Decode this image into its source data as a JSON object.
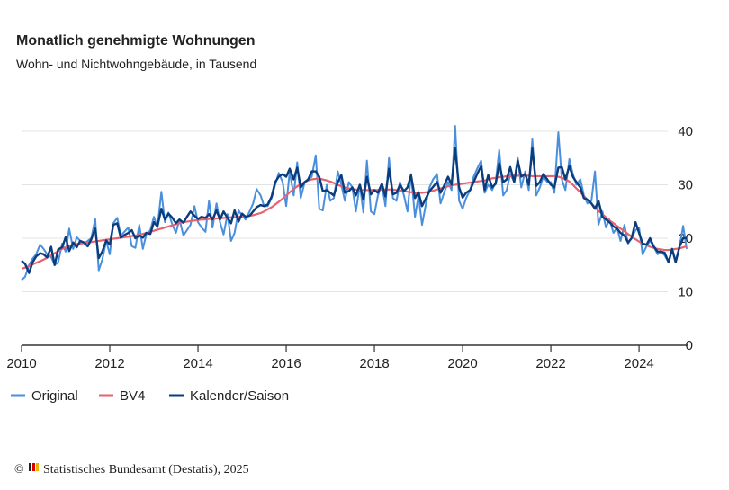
{
  "chart_data": {
    "type": "line",
    "title": "Monatlich genehmigte Wohnungen",
    "subtitle": "Wohn- und Nichtwohngebäude, in Tausend",
    "source": "Statistisches Bundesamt (Destatis), 2025",
    "x": [
      2010,
      2010.08,
      2010.17,
      2010.25,
      2010.33,
      2010.42,
      2010.5,
      2010.58,
      2010.67,
      2010.75,
      2010.83,
      2010.92,
      2011,
      2011.08,
      2011.17,
      2011.25,
      2011.33,
      2011.42,
      2011.5,
      2011.58,
      2011.67,
      2011.75,
      2011.83,
      2011.92,
      2012,
      2012.08,
      2012.17,
      2012.25,
      2012.33,
      2012.42,
      2012.5,
      2012.58,
      2012.67,
      2012.75,
      2012.83,
      2012.92,
      2013,
      2013.08,
      2013.17,
      2013.25,
      2013.33,
      2013.42,
      2013.5,
      2013.58,
      2013.67,
      2013.75,
      2013.83,
      2013.92,
      2014,
      2014.08,
      2014.17,
      2014.25,
      2014.33,
      2014.42,
      2014.5,
      2014.58,
      2014.67,
      2014.75,
      2014.83,
      2014.92,
      2015,
      2015.08,
      2015.17,
      2015.25,
      2015.33,
      2015.42,
      2015.5,
      2015.58,
      2015.67,
      2015.75,
      2015.83,
      2015.92,
      2016,
      2016.08,
      2016.17,
      2016.25,
      2016.33,
      2016.42,
      2016.5,
      2016.58,
      2016.67,
      2016.75,
      2016.83,
      2016.92,
      2017,
      2017.08,
      2017.17,
      2017.25,
      2017.33,
      2017.42,
      2017.5,
      2017.58,
      2017.67,
      2017.75,
      2017.83,
      2017.92,
      2018,
      2018.08,
      2018.17,
      2018.25,
      2018.33,
      2018.42,
      2018.5,
      2018.58,
      2018.67,
      2018.75,
      2018.83,
      2018.92,
      2019,
      2019.08,
      2019.17,
      2019.25,
      2019.33,
      2019.42,
      2019.5,
      2019.58,
      2019.67,
      2019.75,
      2019.83,
      2019.92,
      2020,
      2020.08,
      2020.17,
      2020.25,
      2020.33,
      2020.42,
      2020.5,
      2020.58,
      2020.67,
      2020.75,
      2020.83,
      2020.92,
      2021,
      2021.08,
      2021.17,
      2021.25,
      2021.33,
      2021.42,
      2021.5,
      2021.58,
      2021.67,
      2021.75,
      2021.83,
      2021.92,
      2022,
      2022.08,
      2022.17,
      2022.25,
      2022.33,
      2022.42,
      2022.5,
      2022.58,
      2022.67,
      2022.75,
      2022.83,
      2022.92,
      2023,
      2023.08,
      2023.17,
      2023.25,
      2023.33,
      2023.42,
      2023.5,
      2023.58,
      2023.67,
      2023.75,
      2023.83,
      2023.92,
      2024,
      2024.08,
      2024.17,
      2024.25,
      2024.33,
      2024.42,
      2024.5,
      2024.58,
      2024.67,
      2024.75,
      2024.83,
      2024.92,
      2025,
      2025.08
    ],
    "series": [
      {
        "name": "Original",
        "color": "#4a8fdc",
        "width": 2,
        "values": [
          12.2,
          12.8,
          15.0,
          16.2,
          17.0,
          18.8,
          18.0,
          17.0,
          16.5,
          15.0,
          15.5,
          19.0,
          17.5,
          21.8,
          18.0,
          20.2,
          19.5,
          19.0,
          19.5,
          20.0,
          23.6,
          14.0,
          16.0,
          19.5,
          17.0,
          22.8,
          23.8,
          20.5,
          21.2,
          22.0,
          18.5,
          18.2,
          22.5,
          18.0,
          20.8,
          21.5,
          24.0,
          22.0,
          28.7,
          23.0,
          24.8,
          22.5,
          21.0,
          23.5,
          20.5,
          21.5,
          22.5,
          26.0,
          23.0,
          22.0,
          21.2,
          27.0,
          22.0,
          26.5,
          23.0,
          20.7,
          24.5,
          19.5,
          21.0,
          25.2,
          24.2,
          23.5,
          25.0,
          26.5,
          29.2,
          28.0,
          26.0,
          26.0,
          27.5,
          30.0,
          32.2,
          30.5,
          26.0,
          32.5,
          28.0,
          34.2,
          27.5,
          30.5,
          31.0,
          31.5,
          35.5,
          25.5,
          25.2,
          30.0,
          27.0,
          27.5,
          32.5,
          30.0,
          27.0,
          30.5,
          29.5,
          25.0,
          30.0,
          24.8,
          34.5,
          25.0,
          24.5,
          28.0,
          30.0,
          26.0,
          35.0,
          27.5,
          27.0,
          30.5,
          28.0,
          25.0,
          32.0,
          24.0,
          28.0,
          22.5,
          26.5,
          29.5,
          31.0,
          32.0,
          26.5,
          28.5,
          30.5,
          29.0,
          41.0,
          27.0,
          25.5,
          27.5,
          29.0,
          31.5,
          33.0,
          34.5,
          28.5,
          30.0,
          29.0,
          30.5,
          36.5,
          28.0,
          29.0,
          32.0,
          30.5,
          35.0,
          29.5,
          32.5,
          29.0,
          38.5,
          28.0,
          29.5,
          31.5,
          30.5,
          30.5,
          28.5,
          39.8,
          31.0,
          29.0,
          34.8,
          32.0,
          30.0,
          31.0,
          28.0,
          26.5,
          27.0,
          32.5,
          22.5,
          25.0,
          22.0,
          23.5,
          21.0,
          22.0,
          19.5,
          22.5,
          19.0,
          20.0,
          21.5,
          22.0,
          17.0,
          18.5,
          19.5,
          18.5,
          17.0,
          17.5,
          16.8,
          15.5,
          18.0,
          15.8,
          18.5,
          22.3,
          18.0
        ]
      },
      {
        "name": "BV4",
        "color": "#e8616f",
        "width": 2.2,
        "values": [
          14.3,
          14.5,
          14.8,
          15.1,
          15.4,
          15.7,
          16.0,
          16.4,
          16.8,
          17.2,
          17.6,
          18.0,
          18.3,
          18.5,
          18.7,
          18.9,
          19.0,
          19.1,
          19.2,
          19.3,
          19.4,
          19.5,
          19.6,
          19.7,
          19.8,
          19.9,
          20.0,
          20.1,
          20.2,
          20.3,
          20.4,
          20.5,
          20.6,
          20.8,
          21.0,
          21.2,
          21.4,
          21.6,
          21.8,
          22.0,
          22.2,
          22.4,
          22.6,
          22.8,
          23.0,
          23.1,
          23.2,
          23.3,
          23.4,
          23.5,
          23.5,
          23.6,
          23.6,
          23.7,
          23.7,
          23.8,
          23.8,
          23.9,
          23.9,
          24.0,
          24.0,
          24.1,
          24.2,
          24.3,
          24.5,
          24.7,
          25.0,
          25.4,
          25.8,
          26.3,
          26.8,
          27.4,
          28.0,
          28.6,
          29.2,
          29.7,
          30.1,
          30.5,
          30.8,
          31.0,
          31.1,
          31.1,
          31.0,
          30.8,
          30.6,
          30.3,
          30.0,
          29.7,
          29.5,
          29.3,
          29.2,
          29.1,
          29.0,
          29.0,
          29.0,
          29.0,
          29.0,
          29.0,
          29.1,
          29.1,
          29.1,
          29.1,
          29.0,
          28.9,
          28.8,
          28.7,
          28.6,
          28.5,
          28.5,
          28.5,
          28.6,
          28.7,
          28.9,
          29.1,
          29.3,
          29.5,
          29.7,
          29.9,
          30.0,
          30.1,
          30.2,
          30.3,
          30.4,
          30.5,
          30.6,
          30.7,
          30.8,
          31.0,
          31.2,
          31.3,
          31.4,
          31.5,
          31.6,
          31.6,
          31.7,
          31.7,
          31.7,
          31.7,
          31.7,
          31.6,
          31.6,
          31.6,
          31.6,
          31.6,
          31.6,
          31.6,
          31.5,
          31.3,
          31.0,
          30.6,
          30.0,
          29.3,
          28.6,
          27.9,
          27.2,
          26.5,
          25.8,
          25.1,
          24.5,
          23.9,
          23.3,
          22.8,
          22.3,
          21.8,
          21.3,
          20.8,
          20.3,
          19.8,
          19.4,
          19.0,
          18.7,
          18.4,
          18.2,
          18.0,
          17.9,
          17.8,
          17.8,
          17.9,
          18.0,
          18.1,
          18.3,
          18.5
        ]
      },
      {
        "name": "Kalender/Saison",
        "color": "#0b3d7c",
        "width": 2.4,
        "values": [
          15.8,
          15.2,
          13.5,
          15.5,
          16.6,
          17.2,
          17.0,
          16.4,
          18.4,
          15.0,
          17.9,
          18.3,
          20.2,
          17.6,
          19.2,
          18.3,
          19.5,
          19.2,
          18.5,
          19.8,
          21.8,
          16.3,
          17.5,
          19.6,
          18.8,
          22.5,
          22.8,
          20.1,
          20.6,
          21.0,
          21.5,
          20.0,
          20.5,
          20.1,
          21.0,
          20.8,
          23.0,
          22.2,
          25.5,
          23.5,
          24.6,
          23.8,
          22.8,
          23.5,
          22.9,
          24.0,
          25.0,
          24.2,
          23.6,
          24.0,
          23.8,
          24.5,
          23.5,
          25.2,
          23.5,
          25.0,
          23.8,
          22.8,
          25.2,
          23.1,
          24.6,
          24.0,
          24.2,
          25.0,
          25.8,
          26.2,
          26.0,
          26.3,
          27.8,
          30.5,
          31.5,
          32.0,
          31.5,
          33.0,
          31.0,
          33.2,
          29.5,
          30.5,
          31.0,
          32.5,
          32.5,
          31.5,
          28.8,
          29.0,
          28.5,
          28.0,
          30.5,
          31.8,
          28.5,
          28.8,
          29.5,
          28.0,
          30.0,
          27.2,
          31.5,
          28.2,
          29.0,
          28.5,
          30.2,
          27.8,
          33.0,
          28.2,
          28.5,
          30.0,
          28.8,
          29.5,
          31.8,
          27.5,
          28.6,
          26.0,
          27.5,
          28.8,
          29.6,
          30.5,
          28.5,
          29.8,
          31.5,
          30.0,
          36.8,
          29.5,
          27.6,
          28.5,
          29.0,
          30.5,
          32.0,
          33.5,
          29.0,
          31.8,
          29.5,
          30.2,
          34.0,
          30.5,
          31.0,
          33.3,
          30.5,
          34.5,
          31.5,
          32.0,
          30.0,
          36.8,
          29.8,
          30.5,
          32.0,
          31.0,
          30.0,
          29.5,
          33.2,
          33.3,
          31.0,
          33.5,
          31.5,
          30.5,
          29.5,
          27.5,
          27.2,
          26.5,
          25.5,
          27.0,
          24.0,
          23.5,
          23.0,
          22.2,
          21.8,
          21.0,
          20.5,
          19.2,
          20.0,
          23.0,
          21.0,
          19.0,
          18.8,
          20.0,
          18.5,
          17.5,
          17.5,
          17.3,
          15.5,
          18.0,
          15.5,
          18.5,
          20.0,
          20.0
        ]
      }
    ],
    "xlim": [
      2010,
      2025.1
    ],
    "xticks": [
      2010,
      2012,
      2014,
      2016,
      2018,
      2020,
      2022,
      2024
    ],
    "ylim": [
      0,
      41
    ],
    "yticks": [
      0,
      10,
      20,
      30,
      40
    ],
    "grid": true,
    "legend": "bottom-left"
  }
}
